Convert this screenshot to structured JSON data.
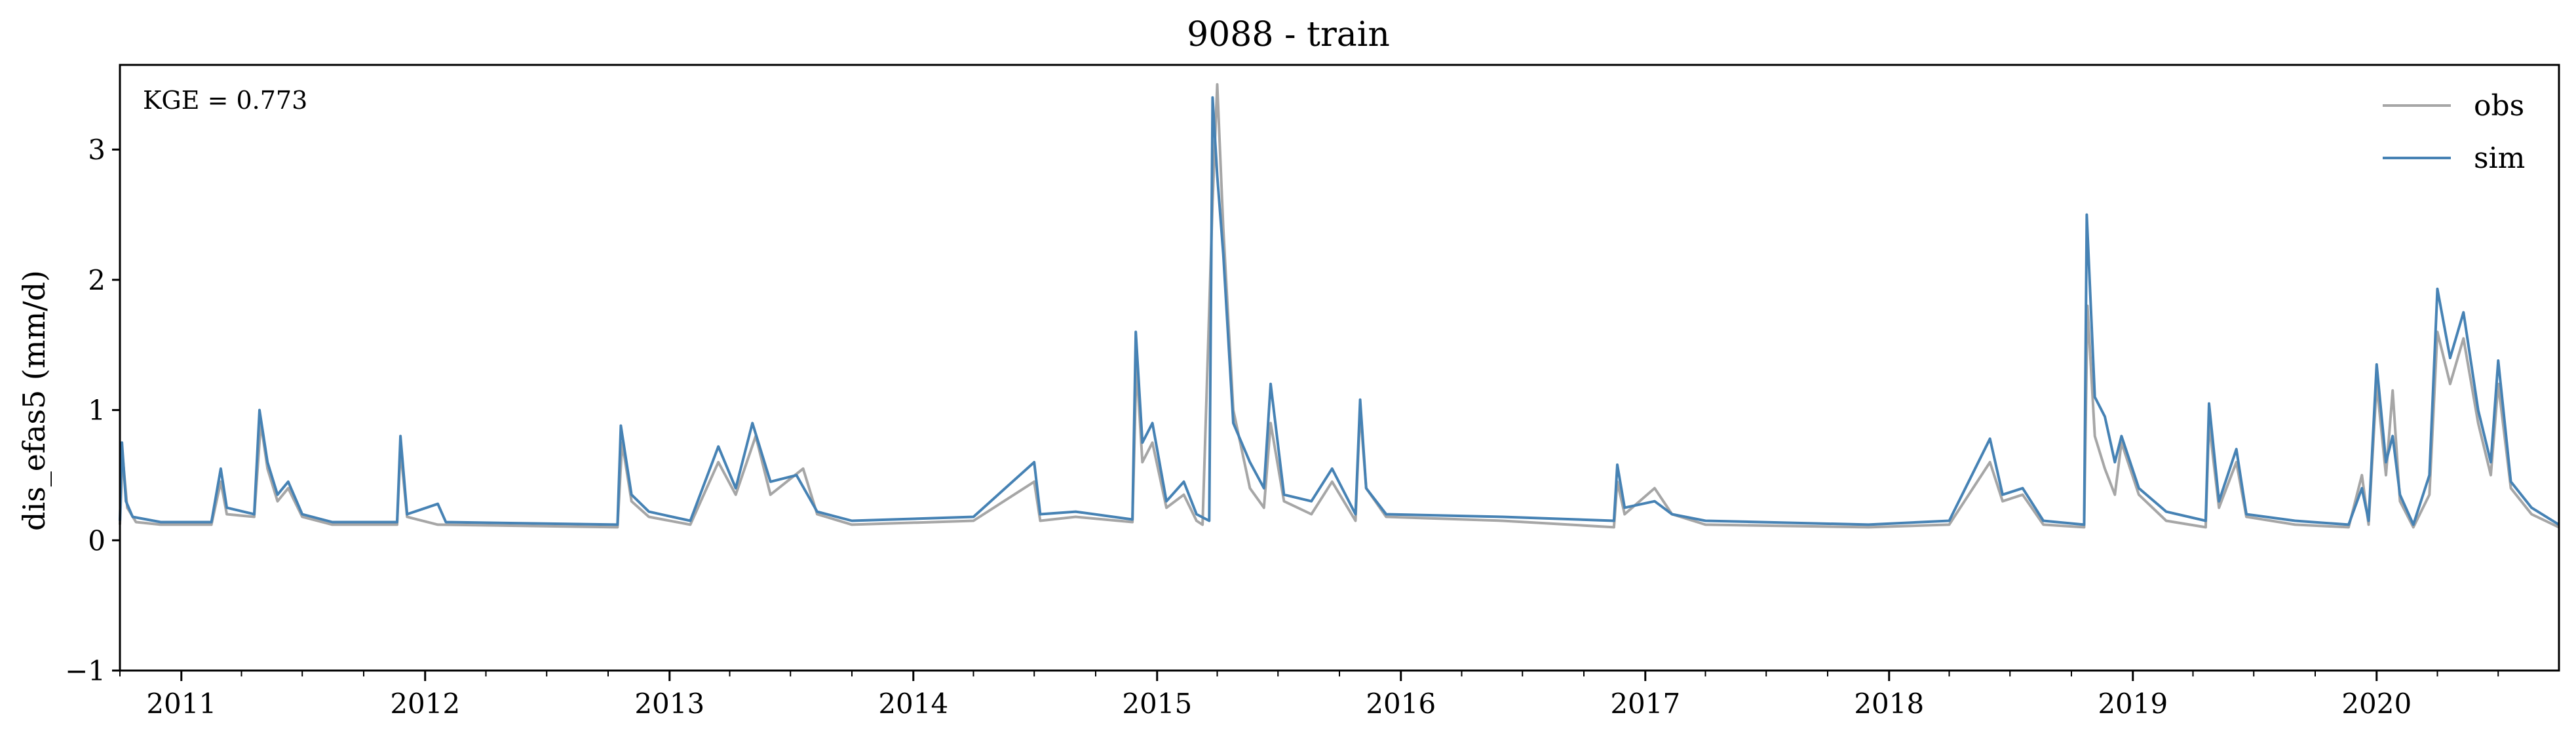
{
  "chart_data": {
    "type": "line",
    "title": "9088 - train",
    "ylabel": "dis_efas5 (mm/d)",
    "xlabel": "",
    "annotation": "KGE = 0.773",
    "xlim": [
      "2010-10-01",
      "2020-09-30"
    ],
    "ylim": [
      -1,
      3.65
    ],
    "yticks": [
      -1,
      0,
      1,
      2,
      3
    ],
    "xticks": [
      "2011",
      "2012",
      "2013",
      "2014",
      "2015",
      "2016",
      "2017",
      "2018",
      "2019",
      "2020"
    ],
    "grid": false,
    "legend_position": "top-right",
    "series": [
      {
        "name": "obs",
        "color": "#a6a6a6",
        "points": [
          [
            "2010-10-01",
            0.12
          ],
          [
            "2010-10-05",
            0.65
          ],
          [
            "2010-10-12",
            0.25
          ],
          [
            "2010-10-25",
            0.14
          ],
          [
            "2010-12-01",
            0.12
          ],
          [
            "2011-02-15",
            0.12
          ],
          [
            "2011-03-01",
            0.45
          ],
          [
            "2011-03-10",
            0.2
          ],
          [
            "2011-04-20",
            0.18
          ],
          [
            "2011-04-30",
            0.9
          ],
          [
            "2011-05-10",
            0.55
          ],
          [
            "2011-05-25",
            0.3
          ],
          [
            "2011-06-10",
            0.4
          ],
          [
            "2011-07-01",
            0.18
          ],
          [
            "2011-08-15",
            0.12
          ],
          [
            "2011-11-20",
            0.12
          ],
          [
            "2011-11-25",
            0.7
          ],
          [
            "2011-12-05",
            0.18
          ],
          [
            "2012-01-20",
            0.12
          ],
          [
            "2012-10-15",
            0.1
          ],
          [
            "2012-10-22",
            0.75
          ],
          [
            "2012-11-05",
            0.3
          ],
          [
            "2012-12-01",
            0.18
          ],
          [
            "2013-02-01",
            0.12
          ],
          [
            "2013-03-15",
            0.6
          ],
          [
            "2013-04-10",
            0.35
          ],
          [
            "2013-05-10",
            0.8
          ],
          [
            "2013-06-01",
            0.35
          ],
          [
            "2013-07-20",
            0.55
          ],
          [
            "2013-08-10",
            0.2
          ],
          [
            "2013-10-01",
            0.12
          ],
          [
            "2014-04-01",
            0.15
          ],
          [
            "2014-07-01",
            0.45
          ],
          [
            "2014-07-10",
            0.15
          ],
          [
            "2014-09-01",
            0.18
          ],
          [
            "2014-11-25",
            0.14
          ],
          [
            "2014-12-01",
            1.35
          ],
          [
            "2014-12-10",
            0.6
          ],
          [
            "2014-12-25",
            0.75
          ],
          [
            "2015-01-15",
            0.25
          ],
          [
            "2015-02-10",
            0.35
          ],
          [
            "2015-03-01",
            0.15
          ],
          [
            "2015-03-10",
            0.12
          ],
          [
            "2015-03-25",
            2.6
          ],
          [
            "2015-04-01",
            3.5
          ],
          [
            "2015-04-10",
            2.4
          ],
          [
            "2015-04-25",
            1.0
          ],
          [
            "2015-05-20",
            0.4
          ],
          [
            "2015-06-10",
            0.25
          ],
          [
            "2015-06-20",
            0.9
          ],
          [
            "2015-07-10",
            0.3
          ],
          [
            "2015-08-20",
            0.2
          ],
          [
            "2015-09-20",
            0.45
          ],
          [
            "2015-10-25",
            0.15
          ],
          [
            "2015-11-01",
            1.0
          ],
          [
            "2015-11-10",
            0.4
          ],
          [
            "2015-12-10",
            0.18
          ],
          [
            "2016-06-01",
            0.15
          ],
          [
            "2016-11-15",
            0.1
          ],
          [
            "2016-11-20",
            0.45
          ],
          [
            "2016-12-01",
            0.2
          ],
          [
            "2017-01-15",
            0.4
          ],
          [
            "2017-02-10",
            0.2
          ],
          [
            "2017-04-01",
            0.12
          ],
          [
            "2017-12-01",
            0.1
          ],
          [
            "2018-04-01",
            0.12
          ],
          [
            "2018-06-01",
            0.6
          ],
          [
            "2018-06-20",
            0.3
          ],
          [
            "2018-07-20",
            0.35
          ],
          [
            "2018-08-20",
            0.12
          ],
          [
            "2018-10-20",
            0.1
          ],
          [
            "2018-10-25",
            1.8
          ],
          [
            "2018-11-05",
            0.8
          ],
          [
            "2018-11-20",
            0.55
          ],
          [
            "2018-12-05",
            0.35
          ],
          [
            "2018-12-15",
            0.75
          ],
          [
            "2019-01-10",
            0.35
          ],
          [
            "2019-02-20",
            0.15
          ],
          [
            "2019-04-20",
            0.1
          ],
          [
            "2019-04-25",
            0.9
          ],
          [
            "2019-05-10",
            0.25
          ],
          [
            "2019-06-05",
            0.6
          ],
          [
            "2019-06-20",
            0.18
          ],
          [
            "2019-09-01",
            0.12
          ],
          [
            "2019-11-20",
            0.1
          ],
          [
            "2019-12-10",
            0.5
          ],
          [
            "2019-12-20",
            0.12
          ],
          [
            "2020-01-01",
            1.2
          ],
          [
            "2020-01-15",
            0.5
          ],
          [
            "2020-01-25",
            1.15
          ],
          [
            "2020-02-05",
            0.3
          ],
          [
            "2020-02-25",
            0.1
          ],
          [
            "2020-03-20",
            0.35
          ],
          [
            "2020-04-01",
            1.6
          ],
          [
            "2020-04-20",
            1.2
          ],
          [
            "2020-05-10",
            1.55
          ],
          [
            "2020-06-01",
            0.9
          ],
          [
            "2020-06-20",
            0.5
          ],
          [
            "2020-07-01",
            1.2
          ],
          [
            "2020-07-20",
            0.4
          ],
          [
            "2020-08-20",
            0.2
          ],
          [
            "2020-09-30",
            0.1
          ]
        ]
      },
      {
        "name": "sim",
        "color": "#4682b4",
        "points": [
          [
            "2010-10-01",
            0.15
          ],
          [
            "2010-10-04",
            0.75
          ],
          [
            "2010-10-10",
            0.3
          ],
          [
            "2010-10-20",
            0.18
          ],
          [
            "2010-12-01",
            0.14
          ],
          [
            "2011-02-15",
            0.14
          ],
          [
            "2011-03-01",
            0.55
          ],
          [
            "2011-03-10",
            0.25
          ],
          [
            "2011-04-20",
            0.2
          ],
          [
            "2011-04-28",
            1.0
          ],
          [
            "2011-05-10",
            0.6
          ],
          [
            "2011-05-25",
            0.35
          ],
          [
            "2011-06-10",
            0.45
          ],
          [
            "2011-07-01",
            0.2
          ],
          [
            "2011-08-15",
            0.14
          ],
          [
            "2011-11-20",
            0.14
          ],
          [
            "2011-11-25",
            0.8
          ],
          [
            "2011-12-05",
            0.2
          ],
          [
            "2012-01-20",
            0.28
          ],
          [
            "2012-02-01",
            0.14
          ],
          [
            "2012-10-15",
            0.12
          ],
          [
            "2012-10-20",
            0.88
          ],
          [
            "2012-11-05",
            0.35
          ],
          [
            "2012-12-01",
            0.22
          ],
          [
            "2013-02-01",
            0.15
          ],
          [
            "2013-03-15",
            0.72
          ],
          [
            "2013-04-10",
            0.4
          ],
          [
            "2013-05-05",
            0.9
          ],
          [
            "2013-06-01",
            0.45
          ],
          [
            "2013-07-10",
            0.5
          ],
          [
            "2013-08-10",
            0.22
          ],
          [
            "2013-10-01",
            0.15
          ],
          [
            "2014-04-01",
            0.18
          ],
          [
            "2014-07-01",
            0.6
          ],
          [
            "2014-07-10",
            0.2
          ],
          [
            "2014-09-01",
            0.22
          ],
          [
            "2014-11-25",
            0.16
          ],
          [
            "2014-11-30",
            1.6
          ],
          [
            "2014-12-10",
            0.75
          ],
          [
            "2014-12-25",
            0.9
          ],
          [
            "2015-01-15",
            0.3
          ],
          [
            "2015-02-10",
            0.45
          ],
          [
            "2015-03-01",
            0.2
          ],
          [
            "2015-03-20",
            0.15
          ],
          [
            "2015-03-25",
            3.4
          ],
          [
            "2015-04-01",
            2.8
          ],
          [
            "2015-04-10",
            2.2
          ],
          [
            "2015-04-25",
            0.9
          ],
          [
            "2015-05-20",
            0.6
          ],
          [
            "2015-06-10",
            0.4
          ],
          [
            "2015-06-20",
            1.2
          ],
          [
            "2015-07-10",
            0.35
          ],
          [
            "2015-08-20",
            0.3
          ],
          [
            "2015-09-20",
            0.55
          ],
          [
            "2015-10-25",
            0.2
          ],
          [
            "2015-11-01",
            1.08
          ],
          [
            "2015-11-10",
            0.4
          ],
          [
            "2015-12-10",
            0.2
          ],
          [
            "2016-06-01",
            0.18
          ],
          [
            "2016-11-15",
            0.15
          ],
          [
            "2016-11-20",
            0.58
          ],
          [
            "2016-12-01",
            0.25
          ],
          [
            "2017-01-15",
            0.3
          ],
          [
            "2017-02-10",
            0.2
          ],
          [
            "2017-04-01",
            0.15
          ],
          [
            "2017-12-01",
            0.12
          ],
          [
            "2018-04-01",
            0.15
          ],
          [
            "2018-06-01",
            0.78
          ],
          [
            "2018-06-20",
            0.35
          ],
          [
            "2018-07-20",
            0.4
          ],
          [
            "2018-08-20",
            0.15
          ],
          [
            "2018-10-20",
            0.12
          ],
          [
            "2018-10-24",
            2.5
          ],
          [
            "2018-11-05",
            1.1
          ],
          [
            "2018-11-20",
            0.95
          ],
          [
            "2018-12-05",
            0.6
          ],
          [
            "2018-12-15",
            0.8
          ],
          [
            "2019-01-10",
            0.4
          ],
          [
            "2019-02-20",
            0.22
          ],
          [
            "2019-04-20",
            0.15
          ],
          [
            "2019-04-25",
            1.05
          ],
          [
            "2019-05-10",
            0.3
          ],
          [
            "2019-06-05",
            0.7
          ],
          [
            "2019-06-20",
            0.2
          ],
          [
            "2019-09-01",
            0.15
          ],
          [
            "2019-11-20",
            0.12
          ],
          [
            "2019-12-10",
            0.4
          ],
          [
            "2019-12-20",
            0.15
          ],
          [
            "2020-01-01",
            1.35
          ],
          [
            "2020-01-15",
            0.6
          ],
          [
            "2020-01-25",
            0.8
          ],
          [
            "2020-02-05",
            0.35
          ],
          [
            "2020-02-25",
            0.12
          ],
          [
            "2020-03-20",
            0.5
          ],
          [
            "2020-04-01",
            1.93
          ],
          [
            "2020-04-20",
            1.4
          ],
          [
            "2020-05-10",
            1.75
          ],
          [
            "2020-06-01",
            1.0
          ],
          [
            "2020-06-20",
            0.6
          ],
          [
            "2020-07-01",
            1.38
          ],
          [
            "2020-07-20",
            0.45
          ],
          [
            "2020-08-20",
            0.25
          ],
          [
            "2020-09-30",
            0.12
          ]
        ]
      }
    ]
  }
}
